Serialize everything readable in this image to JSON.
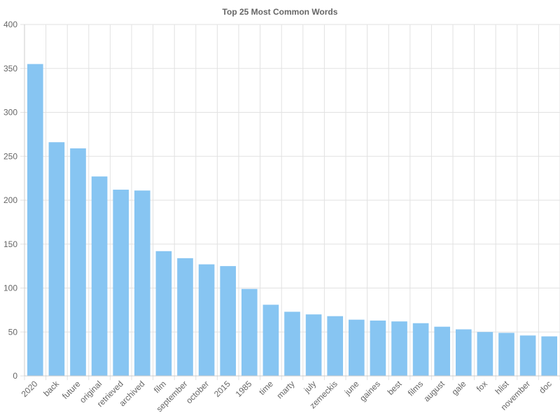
{
  "chart_data": {
    "type": "bar",
    "title": "Top 25 Most Common Words",
    "xlabel": "",
    "ylabel": "",
    "categories": [
      "2020",
      "back",
      "future",
      "original",
      "retrieved",
      "archived",
      "film",
      "september",
      "october",
      "2015",
      "1985",
      "time",
      "marty",
      "july",
      "zemeckis",
      "june",
      "gaines",
      "best",
      "films",
      "august",
      "gale",
      "fox",
      "hlist",
      "november",
      "doc"
    ],
    "values": [
      355,
      266,
      259,
      227,
      212,
      211,
      142,
      134,
      127,
      125,
      99,
      81,
      73,
      70,
      68,
      64,
      63,
      62,
      60,
      56,
      53,
      50,
      49,
      46,
      45
    ],
    "ylim": [
      0,
      400
    ],
    "yticks": [
      0,
      50,
      100,
      150,
      200,
      250,
      300,
      350,
      400
    ],
    "grid": true,
    "legend": "none",
    "bar_color": "#87c5f2",
    "grid_color": "#e2e2e2"
  }
}
